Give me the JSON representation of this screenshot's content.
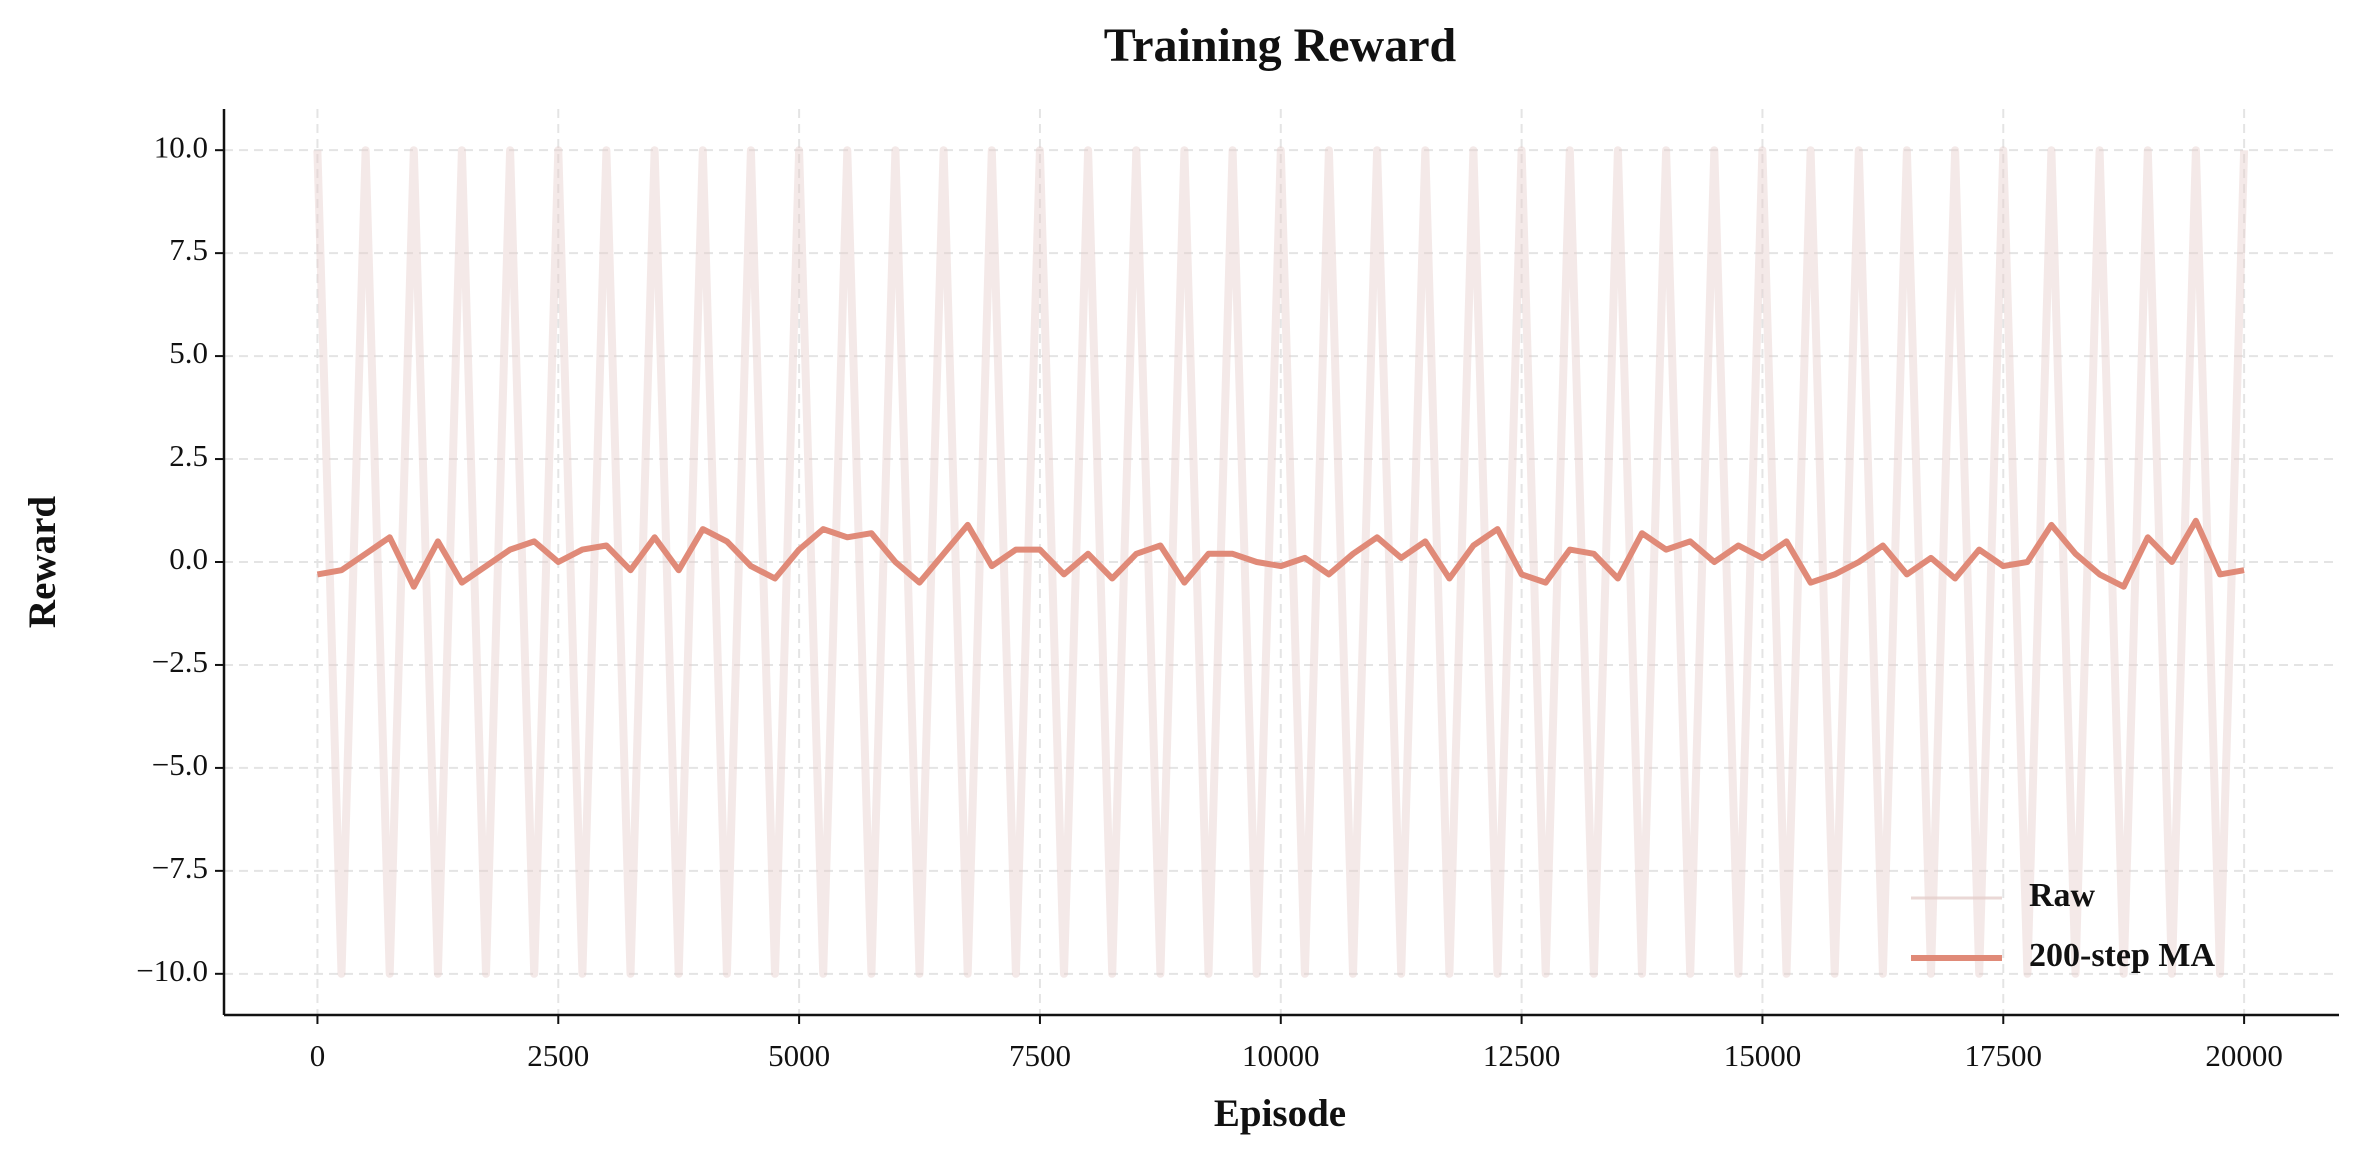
{
  "chart_data": {
    "type": "line",
    "title": "Training Reward",
    "xlabel": "Episode",
    "ylabel": "Reward",
    "xlim": [
      -970,
      20985
    ],
    "ylim": [
      -11,
      11
    ],
    "xticks": [
      0,
      2500,
      5000,
      7500,
      10000,
      12500,
      15000,
      17500,
      20000
    ],
    "yticks": [
      {
        "value": -10,
        "label": "−10.0"
      },
      {
        "value": -7.5,
        "label": "−7.5"
      },
      {
        "value": -5,
        "label": "−5.0"
      },
      {
        "value": -2.5,
        "label": "−2.5"
      },
      {
        "value": 0,
        "label": "0.0"
      },
      {
        "value": 2.5,
        "label": "2.5"
      },
      {
        "value": 5,
        "label": "5.0"
      },
      {
        "value": 7.5,
        "label": "7.5"
      },
      {
        "value": 10,
        "label": "10.0"
      }
    ],
    "grid": true,
    "legend": "lower right",
    "x": [
      0,
      250,
      500,
      750,
      1000,
      1250,
      1500,
      1750,
      2000,
      2250,
      2500,
      2750,
      3000,
      3250,
      3500,
      3750,
      4000,
      4250,
      4500,
      4750,
      5000,
      5250,
      5500,
      5750,
      6000,
      6250,
      6500,
      6750,
      7000,
      7250,
      7500,
      7750,
      8000,
      8250,
      8500,
      8750,
      9000,
      9250,
      9500,
      9750,
      10000,
      10250,
      10500,
      10750,
      11000,
      11250,
      11500,
      11750,
      12000,
      12250,
      12500,
      12750,
      13000,
      13250,
      13500,
      13750,
      14000,
      14250,
      14500,
      14750,
      15000,
      15250,
      15500,
      15750,
      16000,
      16250,
      16500,
      16750,
      17000,
      17250,
      17500,
      17750,
      18000,
      18250,
      18500,
      18750,
      19000,
      19250,
      19500,
      19750,
      20000
    ],
    "series": [
      {
        "name": "Raw",
        "color": "#e6cfcc",
        "values": [
          10,
          -10,
          10,
          -10,
          10,
          -10,
          10,
          -10,
          10,
          -10,
          10,
          -10,
          10,
          -10,
          10,
          -10,
          10,
          -10,
          10,
          -10,
          10,
          -10,
          10,
          -10,
          10,
          -10,
          10,
          -10,
          10,
          -10,
          10,
          -10,
          10,
          -10,
          10,
          -10,
          10,
          -10,
          10,
          -10,
          10,
          -10,
          10,
          -10,
          10,
          -10,
          10,
          -10,
          10,
          -10,
          10,
          -10,
          10,
          -10,
          10,
          -10,
          10,
          -10,
          10,
          -10,
          10,
          -10,
          10,
          -10,
          10,
          -10,
          10,
          -10,
          10,
          -10,
          10,
          -10,
          10,
          -10,
          10,
          -10,
          10,
          -10,
          10,
          -10,
          10
        ]
      },
      {
        "name": "200-step MA",
        "color": "#e08a78",
        "values": [
          -0.3,
          -0.2,
          0.2,
          0.6,
          -0.6,
          0.5,
          -0.5,
          -0.1,
          0.3,
          0.5,
          0.0,
          0.3,
          0.4,
          -0.2,
          0.6,
          -0.2,
          0.8,
          0.5,
          -0.1,
          -0.4,
          0.3,
          0.8,
          0.6,
          0.7,
          0.0,
          -0.5,
          0.2,
          0.9,
          -0.1,
          0.3,
          0.3,
          -0.3,
          0.2,
          -0.4,
          0.2,
          0.4,
          -0.5,
          0.2,
          0.2,
          0.0,
          -0.1,
          0.1,
          -0.3,
          0.2,
          0.6,
          0.1,
          0.5,
          -0.4,
          0.4,
          0.8,
          -0.3,
          -0.5,
          0.3,
          0.2,
          -0.4,
          0.7,
          0.3,
          0.5,
          0.0,
          0.4,
          0.1,
          0.5,
          -0.5,
          -0.3,
          0.0,
          0.4,
          -0.3,
          0.1,
          -0.4,
          0.3,
          -0.1,
          0.0,
          0.9,
          0.2,
          -0.3,
          -0.6,
          0.6,
          0.0,
          1.0,
          -0.3,
          -0.2
        ]
      }
    ]
  }
}
